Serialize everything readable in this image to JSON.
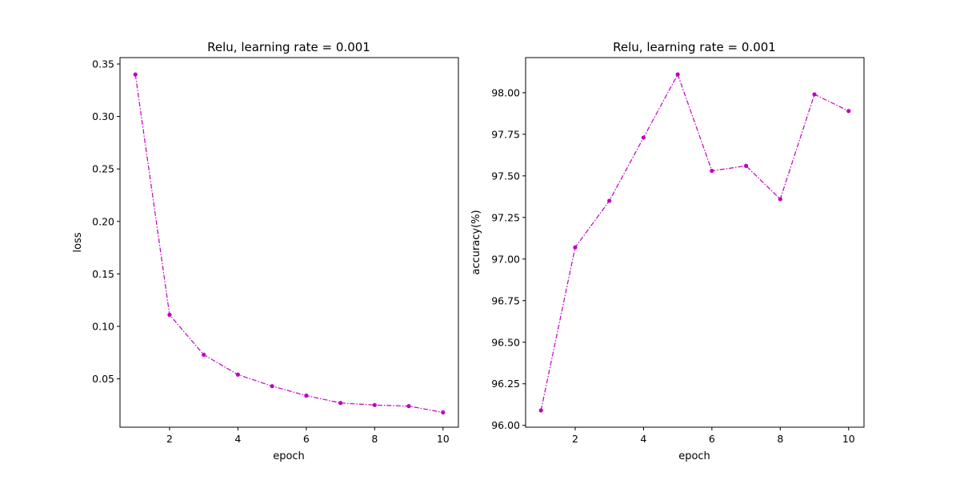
{
  "chart_data": [
    {
      "type": "line",
      "title": "Relu, learning rate = 0.001",
      "xlabel": "epoch",
      "ylabel": "loss",
      "x": [
        1,
        2,
        3,
        4,
        5,
        6,
        7,
        8,
        9,
        10
      ],
      "series": [
        {
          "values": [
            0.34,
            0.111,
            0.073,
            0.054,
            0.043,
            0.034,
            0.027,
            0.025,
            0.024,
            0.018
          ]
        }
      ],
      "xlim": [
        0.55,
        10.45
      ],
      "ylim": [
        0.0039,
        0.3561
      ],
      "xticks": [
        2,
        4,
        6,
        8,
        10
      ],
      "xtick_labels": [
        "2",
        "4",
        "6",
        "8",
        "10"
      ],
      "yticks": [
        0.05,
        0.1,
        0.15,
        0.2,
        0.25,
        0.3,
        0.35
      ],
      "ytick_labels": [
        "0.05",
        "0.10",
        "0.15",
        "0.20",
        "0.25",
        "0.30",
        "0.35"
      ],
      "line_style": "dash-dot",
      "marker": "dot",
      "color": "#bf00bf",
      "grid": false
    },
    {
      "type": "line",
      "title": "Relu, learning rate = 0.001",
      "xlabel": "epoch",
      "ylabel": "accuracy(%)",
      "x": [
        1,
        2,
        3,
        4,
        5,
        6,
        7,
        8,
        9,
        10
      ],
      "series": [
        {
          "values": [
            96.09,
            97.07,
            97.35,
            97.73,
            98.11,
            97.53,
            97.56,
            97.36,
            97.99,
            97.89
          ]
        }
      ],
      "xlim": [
        0.55,
        10.45
      ],
      "ylim": [
        95.989,
        98.211
      ],
      "xticks": [
        2,
        4,
        6,
        8,
        10
      ],
      "xtick_labels": [
        "2",
        "4",
        "6",
        "8",
        "10"
      ],
      "yticks": [
        96.0,
        96.25,
        96.5,
        96.75,
        97.0,
        97.25,
        97.5,
        97.75,
        98.0
      ],
      "ytick_labels": [
        "96.00",
        "96.25",
        "96.50",
        "96.75",
        "97.00",
        "97.25",
        "97.50",
        "97.75",
        "98.00"
      ],
      "line_style": "dash-dot",
      "marker": "dot",
      "color": "#bf00bf",
      "grid": false
    }
  ]
}
